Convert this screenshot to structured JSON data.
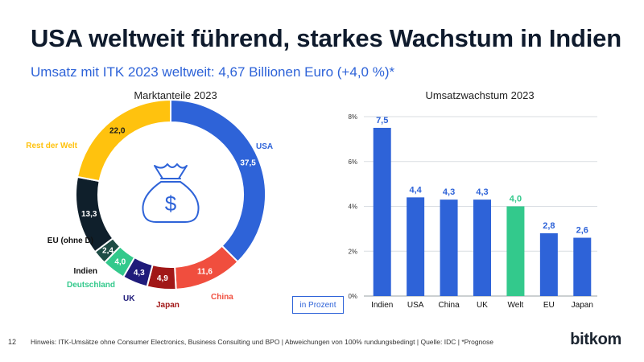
{
  "header": {
    "title": "USA weltweit führend, starkes Wachstum in Indien",
    "subtitle": "Umsatz mit ITK 2023 weltweit: 4,67 Billionen Euro (+4,0 %)*"
  },
  "colors": {
    "accent": "#2e63d8",
    "usa": "#2e63d8",
    "china": "#f04e3e",
    "japan": "#a11717",
    "uk": "#1f1b7a",
    "deutschland": "#33c98c",
    "indien": "#1e4c45",
    "eu": "#0f1f2b",
    "rest": "#ffc20e",
    "welt": "#33c98c"
  },
  "chart_data": [
    {
      "type": "pie",
      "title": "Marktanteile 2023",
      "donut": true,
      "center_icon": "money-bag-icon",
      "slices": [
        {
          "label": "USA",
          "value": 37.5,
          "value_text": "37,5",
          "color": "#2e63d8"
        },
        {
          "label": "China",
          "value": 11.6,
          "value_text": "11,6",
          "color": "#f04e3e"
        },
        {
          "label": "Japan",
          "value": 4.9,
          "value_text": "4,9",
          "color": "#a11717"
        },
        {
          "label": "UK",
          "value": 4.3,
          "value_text": "4,3",
          "color": "#1f1b7a"
        },
        {
          "label": "Deutschland",
          "value": 4.0,
          "value_text": "4,0",
          "color": "#33c98c"
        },
        {
          "label": "Indien",
          "value": 2.4,
          "value_text": "2,4",
          "color": "#1e4c45"
        },
        {
          "label": "EU (ohne D)",
          "value": 13.3,
          "value_text": "13,3",
          "color": "#0f1f2b"
        },
        {
          "label": "Rest der Welt",
          "value": 22.0,
          "value_text": "22,0",
          "color": "#ffc20e"
        }
      ]
    },
    {
      "type": "bar",
      "title": "Umsatzwachstum 2023",
      "categories": [
        "Indien",
        "USA",
        "China",
        "UK",
        "Welt",
        "EU",
        "Japan"
      ],
      "values": [
        7.5,
        4.4,
        4.3,
        4.3,
        4.0,
        2.8,
        2.6
      ],
      "value_labels": [
        "7,5",
        "4,4",
        "4,3",
        "4,3",
        "4,0",
        "2,8",
        "2,6"
      ],
      "highlight": "Welt",
      "ylim": [
        0,
        8
      ],
      "yticks": [
        0,
        2,
        4,
        6,
        8
      ],
      "ytick_labels": [
        "0%",
        "2%",
        "4%",
        "6%",
        "8%"
      ],
      "unit_note": "in Prozent",
      "grid": true
    }
  ],
  "footer": {
    "page_number": "12",
    "note": "Hinweis: ITK-Umsätze ohne Consumer Electronics, Business Consulting und BPO | Abweichungen von 100% rundungsbedingt | Quelle: IDC | *Prognose",
    "logo": "bitkom"
  }
}
